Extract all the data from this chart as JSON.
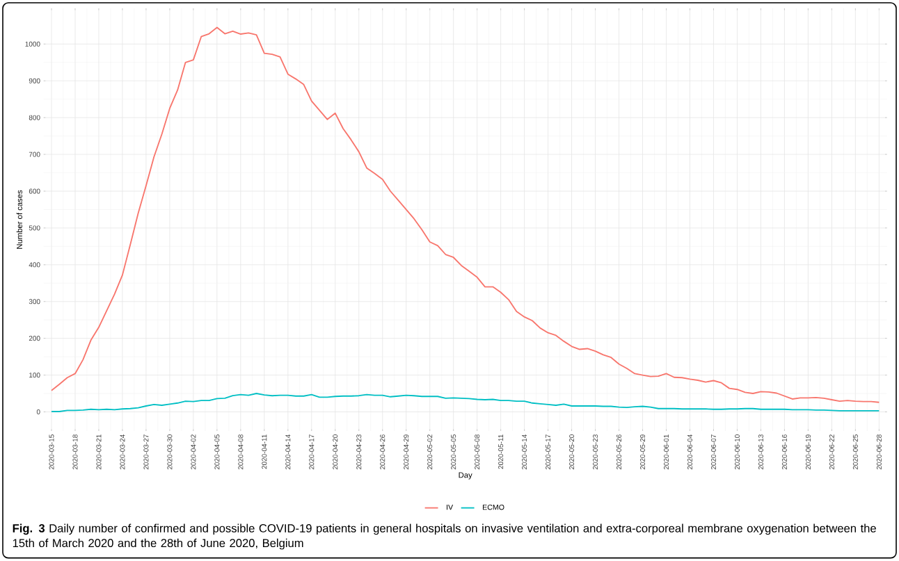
{
  "chart_data": {
    "type": "line",
    "xlabel": "Day",
    "ylabel": "Number of cases",
    "x": [
      "2020-03-15",
      "2020-03-16",
      "2020-03-17",
      "2020-03-18",
      "2020-03-19",
      "2020-03-20",
      "2020-03-21",
      "2020-03-22",
      "2020-03-23",
      "2020-03-24",
      "2020-03-25",
      "2020-03-26",
      "2020-03-27",
      "2020-03-28",
      "2020-03-29",
      "2020-03-30",
      "2020-03-31",
      "2020-04-01",
      "2020-04-02",
      "2020-04-03",
      "2020-04-04",
      "2020-04-05",
      "2020-04-06",
      "2020-04-07",
      "2020-04-08",
      "2020-04-09",
      "2020-04-10",
      "2020-04-11",
      "2020-04-12",
      "2020-04-13",
      "2020-04-14",
      "2020-04-15",
      "2020-04-16",
      "2020-04-17",
      "2020-04-18",
      "2020-04-19",
      "2020-04-20",
      "2020-04-21",
      "2020-04-22",
      "2020-04-23",
      "2020-04-24",
      "2020-04-25",
      "2020-04-26",
      "2020-04-27",
      "2020-04-28",
      "2020-04-29",
      "2020-04-30",
      "2020-05-01",
      "2020-05-02",
      "2020-05-03",
      "2020-05-04",
      "2020-05-05",
      "2020-05-06",
      "2020-05-07",
      "2020-05-08",
      "2020-05-09",
      "2020-05-10",
      "2020-05-11",
      "2020-05-12",
      "2020-05-13",
      "2020-05-14",
      "2020-05-15",
      "2020-05-16",
      "2020-05-17",
      "2020-05-18",
      "2020-05-19",
      "2020-05-20",
      "2020-05-21",
      "2020-05-22",
      "2020-05-23",
      "2020-05-24",
      "2020-05-25",
      "2020-05-26",
      "2020-05-27",
      "2020-05-28",
      "2020-05-29",
      "2020-05-30",
      "2020-05-31",
      "2020-06-01",
      "2020-06-02",
      "2020-06-03",
      "2020-06-04",
      "2020-06-05",
      "2020-06-06",
      "2020-06-07",
      "2020-06-08",
      "2020-06-09",
      "2020-06-10",
      "2020-06-11",
      "2020-06-12",
      "2020-06-13",
      "2020-06-14",
      "2020-06-15",
      "2020-06-16",
      "2020-06-17",
      "2020-06-18",
      "2020-06-19",
      "2020-06-20",
      "2020-06-21",
      "2020-06-22",
      "2020-06-23",
      "2020-06-24",
      "2020-06-25",
      "2020-06-26",
      "2020-06-27",
      "2020-06-28"
    ],
    "series": [
      {
        "name": "IV",
        "color": "#f8766d",
        "values": [
          58,
          75,
          93,
          104,
          142,
          195,
          230,
          275,
          320,
          372,
          455,
          540,
          615,
          693,
          755,
          825,
          875,
          950,
          957,
          1020,
          1028,
          1045,
          1028,
          1035,
          1027,
          1030,
          1025,
          975,
          972,
          965,
          918,
          905,
          890,
          845,
          820,
          795,
          812,
          770,
          740,
          707,
          663,
          648,
          632,
          600,
          575,
          550,
          525,
          495,
          462,
          452,
          428,
          420,
          398,
          382,
          366,
          340,
          340,
          325,
          305,
          273,
          258,
          248,
          228,
          215,
          208,
          192,
          178,
          170,
          172,
          165,
          155,
          148,
          130,
          118,
          104,
          100,
          96,
          97,
          104,
          94,
          93,
          89,
          86,
          81,
          85,
          79,
          64,
          61,
          53,
          50,
          55,
          54,
          51,
          43,
          35,
          38,
          38,
          39,
          37,
          33,
          29,
          31,
          29,
          28,
          28,
          26
        ]
      },
      {
        "name": "ECMO",
        "color": "#00bfc4",
        "values": [
          1,
          1,
          4,
          4,
          5,
          7,
          6,
          7,
          6,
          8,
          9,
          11,
          16,
          20,
          18,
          21,
          24,
          29,
          28,
          31,
          31,
          36,
          37,
          44,
          47,
          45,
          50,
          46,
          44,
          45,
          45,
          43,
          43,
          47,
          40,
          40,
          42,
          43,
          43,
          44,
          47,
          45,
          45,
          41,
          43,
          45,
          44,
          42,
          42,
          42,
          37,
          38,
          37,
          36,
          34,
          33,
          34,
          31,
          31,
          29,
          29,
          24,
          22,
          20,
          18,
          21,
          16,
          16,
          16,
          16,
          15,
          15,
          13,
          12,
          14,
          15,
          13,
          9,
          9,
          9,
          8,
          8,
          8,
          8,
          7,
          7,
          8,
          8,
          9,
          9,
          7,
          7,
          7,
          7,
          6,
          6,
          6,
          5,
          5,
          4,
          3,
          3,
          3,
          3,
          3,
          3
        ]
      }
    ],
    "xlim": [
      "2020-03-14",
      "2020-06-29"
    ],
    "xticks": [
      "2020-03-15",
      "2020-03-18",
      "2020-03-21",
      "2020-03-24",
      "2020-03-27",
      "2020-03-30",
      "2020-04-02",
      "2020-04-05",
      "2020-04-08",
      "2020-04-11",
      "2020-04-14",
      "2020-04-17",
      "2020-04-20",
      "2020-04-23",
      "2020-04-26",
      "2020-04-29",
      "2020-05-02",
      "2020-05-05",
      "2020-05-08",
      "2020-05-11",
      "2020-05-14",
      "2020-05-17",
      "2020-05-20",
      "2020-05-23",
      "2020-05-26",
      "2020-05-29",
      "2020-06-01",
      "2020-06-04",
      "2020-06-07",
      "2020-06-10",
      "2020-06-13",
      "2020-06-16",
      "2020-06-19",
      "2020-06-22",
      "2020-06-25",
      "2020-06-28"
    ],
    "ylim": [
      -52,
      1097
    ],
    "yticks": [
      0,
      100,
      200,
      300,
      400,
      500,
      600,
      700,
      800,
      900,
      1000
    ],
    "grid": true,
    "legend": "bottom",
    "annotations": [
      "**Fig. 3** Daily number of confirmed and possible COVID-19 patients in general hospitals on invasive ventilation and extra-corporeal membrane oxygenation between the 15th of March 2020 and the 28th of June 2020, Belgium"
    ]
  }
}
